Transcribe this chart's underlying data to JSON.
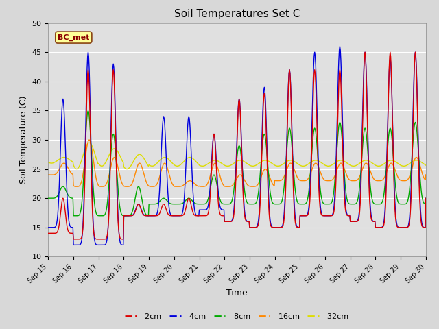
{
  "title": "Soil Temperatures Set C",
  "xlabel": "Time",
  "ylabel": "Soil Temperature (C)",
  "ylim": [
    10,
    50
  ],
  "annotation": "BC_met",
  "series_colors": {
    "-2cm": "#dd0000",
    "-4cm": "#0000dd",
    "-8cm": "#00aa00",
    "-16cm": "#ff8800",
    "-32cm": "#dddd00"
  },
  "background_color": "#d8d8d8",
  "plot_bg_color": "#e0e0e0",
  "grid_color": "#ffffff",
  "dates": [
    "Sep 15",
    "Sep 16",
    "Sep 17",
    "Sep 18",
    "Sep 19",
    "Sep 20",
    "Sep 21",
    "Sep 22",
    "Sep 23",
    "Sep 24",
    "Sep 25",
    "Sep 26",
    "Sep 27",
    "Sep 28",
    "Sep 29",
    "Sep 30"
  ],
  "n_days": 16,
  "figsize": [
    6.4,
    4.8
  ],
  "dpi": 100,
  "title_fontsize": 11,
  "axis_label_fontsize": 9,
  "tick_fontsize": 7,
  "legend_fontsize": 8,
  "linewidth": 1.0
}
